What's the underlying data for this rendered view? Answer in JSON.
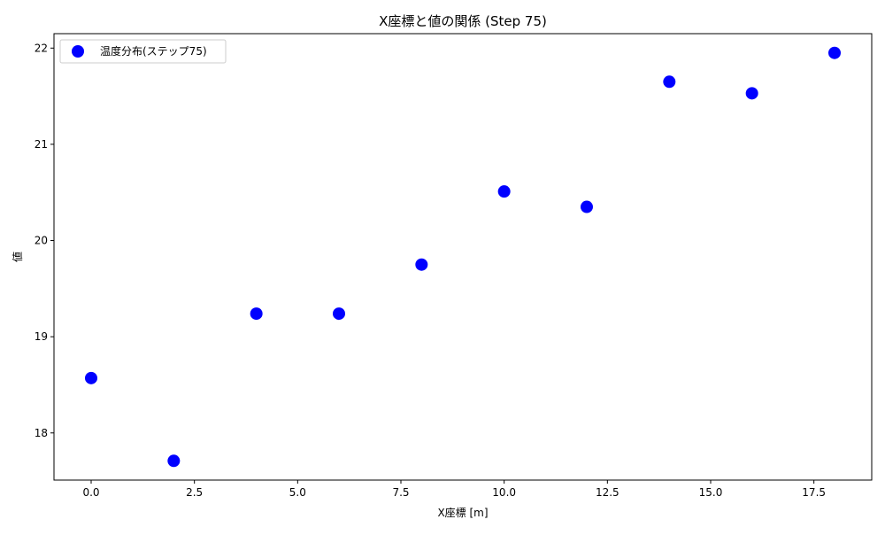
{
  "chart_data": {
    "type": "scatter",
    "title": "X座標と値の関係 (Step 75)",
    "xlabel": "X座標 [m]",
    "ylabel": "値",
    "xlim": [
      -0.9,
      18.9
    ],
    "ylim": [
      17.51,
      22.15
    ],
    "xticks": [
      0.0,
      2.5,
      5.0,
      7.5,
      10.0,
      12.5,
      15.0,
      17.5
    ],
    "xtick_labels": [
      "0.0",
      "2.5",
      "5.0",
      "7.5",
      "10.0",
      "12.5",
      "15.0",
      "17.5"
    ],
    "yticks": [
      18,
      19,
      20,
      21,
      22
    ],
    "ytick_labels": [
      "18",
      "19",
      "20",
      "21",
      "22"
    ],
    "grid": false,
    "legend_position": "top-left",
    "series": [
      {
        "name": "温度分布(ステップ75)",
        "color": "#0000ff",
        "marker": "circle",
        "x": [
          0,
          2,
          4,
          6,
          8,
          10,
          12,
          14,
          16,
          18
        ],
        "y": [
          18.57,
          17.71,
          19.24,
          19.24,
          19.75,
          20.51,
          20.35,
          21.65,
          21.53,
          21.95
        ]
      }
    ]
  }
}
